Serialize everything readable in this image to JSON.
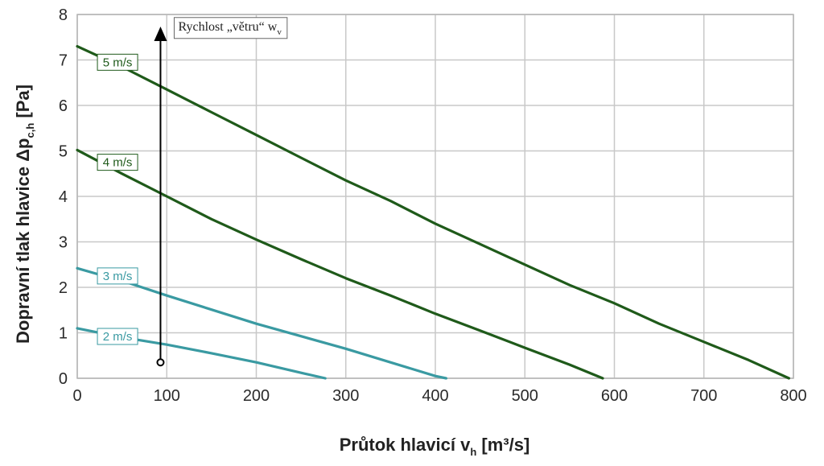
{
  "chart_data": {
    "type": "line",
    "xlabel": "Průtok hlavicí v",
    "xlabel_sub": "h",
    "xlabel_unit": " [m³/s]",
    "ylabel": "Dopravní tlak hlavice  Δp",
    "ylabel_sub": "c,h",
    "ylabel_unit": " [Pa]",
    "xlim": [
      0,
      800
    ],
    "ylim": [
      0,
      8
    ],
    "xticks": [
      "0",
      "100",
      "200",
      "300",
      "400",
      "500",
      "600",
      "700",
      "800"
    ],
    "yticks": [
      "0",
      "1",
      "2",
      "3",
      "4",
      "5",
      "6",
      "7",
      "8"
    ],
    "grid": true,
    "annotation": {
      "text": "Rychlost „větru“  w",
      "sub": "v",
      "arrow_x": 93,
      "arrow_from_y": 0.35,
      "arrow_to_y": 7.7
    },
    "series": [
      {
        "name": "5 m/s",
        "color": "#1f5a1a",
        "label_at": [
          45,
          6.95
        ],
        "points": [
          [
            0,
            7.3
          ],
          [
            50,
            6.85
          ],
          [
            100,
            6.35
          ],
          [
            150,
            5.85
          ],
          [
            200,
            5.35
          ],
          [
            250,
            4.85
          ],
          [
            300,
            4.35
          ],
          [
            350,
            3.9
          ],
          [
            400,
            3.4
          ],
          [
            450,
            2.95
          ],
          [
            500,
            2.5
          ],
          [
            550,
            2.05
          ],
          [
            600,
            1.65
          ],
          [
            650,
            1.2
          ],
          [
            700,
            0.8
          ],
          [
            750,
            0.4
          ],
          [
            795,
            0.0
          ]
        ]
      },
      {
        "name": "4 m/s",
        "color": "#1f5a1a",
        "label_at": [
          45,
          4.75
        ],
        "points": [
          [
            0,
            5.02
          ],
          [
            50,
            4.5
          ],
          [
            100,
            4.0
          ],
          [
            150,
            3.5
          ],
          [
            200,
            3.05
          ],
          [
            250,
            2.62
          ],
          [
            300,
            2.2
          ],
          [
            350,
            1.82
          ],
          [
            400,
            1.42
          ],
          [
            450,
            1.05
          ],
          [
            500,
            0.67
          ],
          [
            550,
            0.3
          ],
          [
            587,
            0.0
          ]
        ]
      },
      {
        "name": "3 m/s",
        "color": "#3a9aa2",
        "label_at": [
          45,
          2.25
        ],
        "points": [
          [
            0,
            2.42
          ],
          [
            60,
            2.08
          ],
          [
            100,
            1.82
          ],
          [
            200,
            1.2
          ],
          [
            300,
            0.65
          ],
          [
            400,
            0.05
          ],
          [
            412,
            0.0
          ]
        ]
      },
      {
        "name": "2 m/s",
        "color": "#3a9aa2",
        "label_at": [
          45,
          0.92
        ],
        "points": [
          [
            0,
            1.1
          ],
          [
            50,
            0.9
          ],
          [
            100,
            0.74
          ],
          [
            150,
            0.55
          ],
          [
            200,
            0.35
          ],
          [
            250,
            0.12
          ],
          [
            277,
            0.0
          ]
        ]
      }
    ]
  }
}
